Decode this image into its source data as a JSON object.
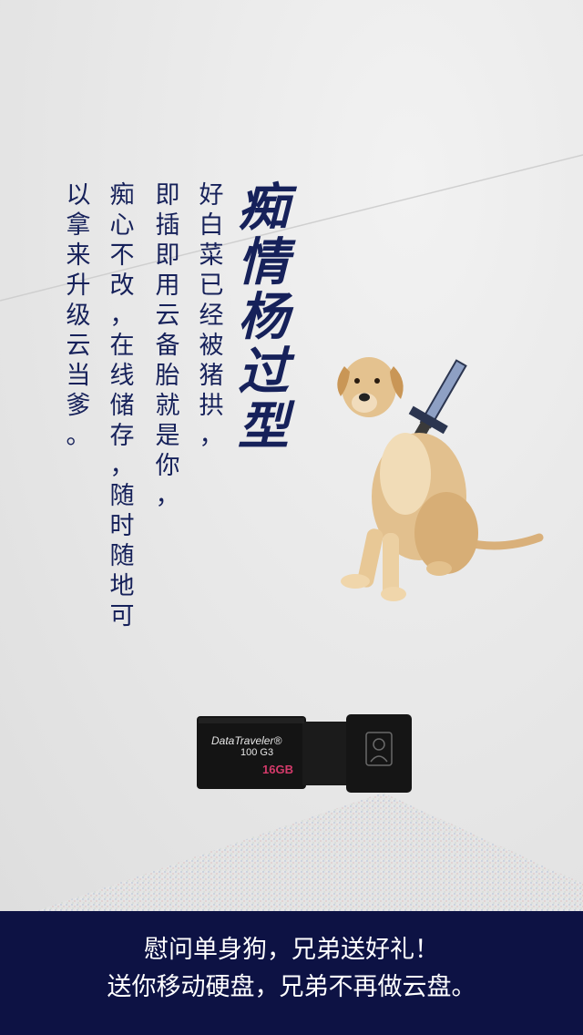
{
  "title": {
    "chars": [
      "痴",
      "情",
      "杨",
      "过",
      "型"
    ]
  },
  "body_columns": [
    {
      "chars": [
        "好",
        "白",
        "菜",
        "已",
        "经",
        "被",
        "猪",
        "拱",
        "，"
      ]
    },
    {
      "chars": [
        "即",
        "插",
        "即",
        "用",
        "云",
        "备",
        "胎",
        "就",
        "是",
        "你",
        "，"
      ]
    },
    {
      "chars": [
        "痴",
        "心",
        "不",
        "改",
        "，",
        "在",
        "线",
        "储",
        "存",
        "，",
        "随",
        "时",
        "随",
        "地",
        "可"
      ]
    },
    {
      "chars": [
        "以",
        "拿",
        "来",
        "升",
        "级",
        "云",
        "当",
        "爹",
        "。"
      ]
    }
  ],
  "product": {
    "brand": "DataTraveler®",
    "model": "100 G3",
    "capacity": "16GB"
  },
  "footer": {
    "line1": "慰问单身狗，兄弟送好礼！",
    "line2": "送你移动硬盘，兄弟不再做云盘。"
  },
  "colors": {
    "title": "#16215a",
    "footer_bg": "#0d1244",
    "footer_text": "#ffffff"
  }
}
